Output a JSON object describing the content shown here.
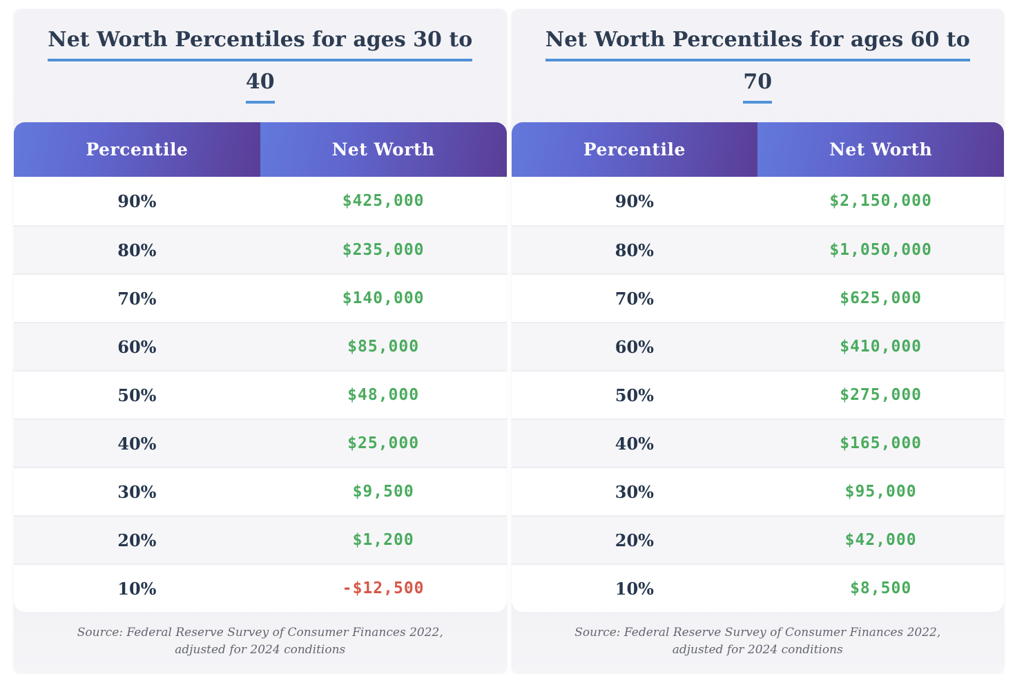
{
  "colors": {
    "page_background": "#ffffff",
    "card_background": "#f3f3f7",
    "title_text": "#2d3c52",
    "title_underline": "#4f92d8",
    "header_gradient_start": "#6379dc",
    "header_gradient_end": "#5a3d96",
    "header_text": "#ffffff",
    "row_background": "#ffffff",
    "row_alt_background": "#f6f6f9",
    "row_divider": "#ededf1",
    "percentile_text": "#26364c",
    "value_positive": "#4aab5d",
    "value_negative": "#d65748",
    "source_text": "#63666e"
  },
  "chart_data": [
    {
      "type": "table",
      "title": "Net Worth Percentiles for ages 30 to 40",
      "title_lines": [
        "Net Worth Percentiles for ages 30 to",
        "40"
      ],
      "columns": [
        "Percentile",
        "Net Worth"
      ],
      "rows": [
        [
          "90%",
          "$425,000"
        ],
        [
          "80%",
          "$235,000"
        ],
        [
          "70%",
          "$140,000"
        ],
        [
          "60%",
          "$85,000"
        ],
        [
          "50%",
          "$48,000"
        ],
        [
          "40%",
          "$25,000"
        ],
        [
          "30%",
          "$9,500"
        ],
        [
          "20%",
          "$1,200"
        ],
        [
          "10%",
          "-$12,500"
        ]
      ],
      "percentiles_numeric": [
        90,
        80,
        70,
        60,
        50,
        40,
        30,
        20,
        10
      ],
      "net_worth_numeric": [
        425000,
        235000,
        140000,
        85000,
        48000,
        25000,
        9500,
        1200,
        -12500
      ],
      "source": "Source: Federal Reserve Survey of Consumer Finances 2022, adjusted for 2024 conditions"
    },
    {
      "type": "table",
      "title": "Net Worth Percentiles for ages 60 to 70",
      "title_lines": [
        "Net Worth Percentiles for ages 60 to",
        "70"
      ],
      "columns": [
        "Percentile",
        "Net Worth"
      ],
      "rows": [
        [
          "90%",
          "$2,150,000"
        ],
        [
          "80%",
          "$1,050,000"
        ],
        [
          "70%",
          "$625,000"
        ],
        [
          "60%",
          "$410,000"
        ],
        [
          "50%",
          "$275,000"
        ],
        [
          "40%",
          "$165,000"
        ],
        [
          "30%",
          "$95,000"
        ],
        [
          "20%",
          "$42,000"
        ],
        [
          "10%",
          "$8,500"
        ]
      ],
      "percentiles_numeric": [
        90,
        80,
        70,
        60,
        50,
        40,
        30,
        20,
        10
      ],
      "net_worth_numeric": [
        2150000,
        1050000,
        625000,
        410000,
        275000,
        165000,
        95000,
        42000,
        8500
      ],
      "source": "Source: Federal Reserve Survey of Consumer Finances 2022, adjusted for 2024 conditions"
    }
  ]
}
